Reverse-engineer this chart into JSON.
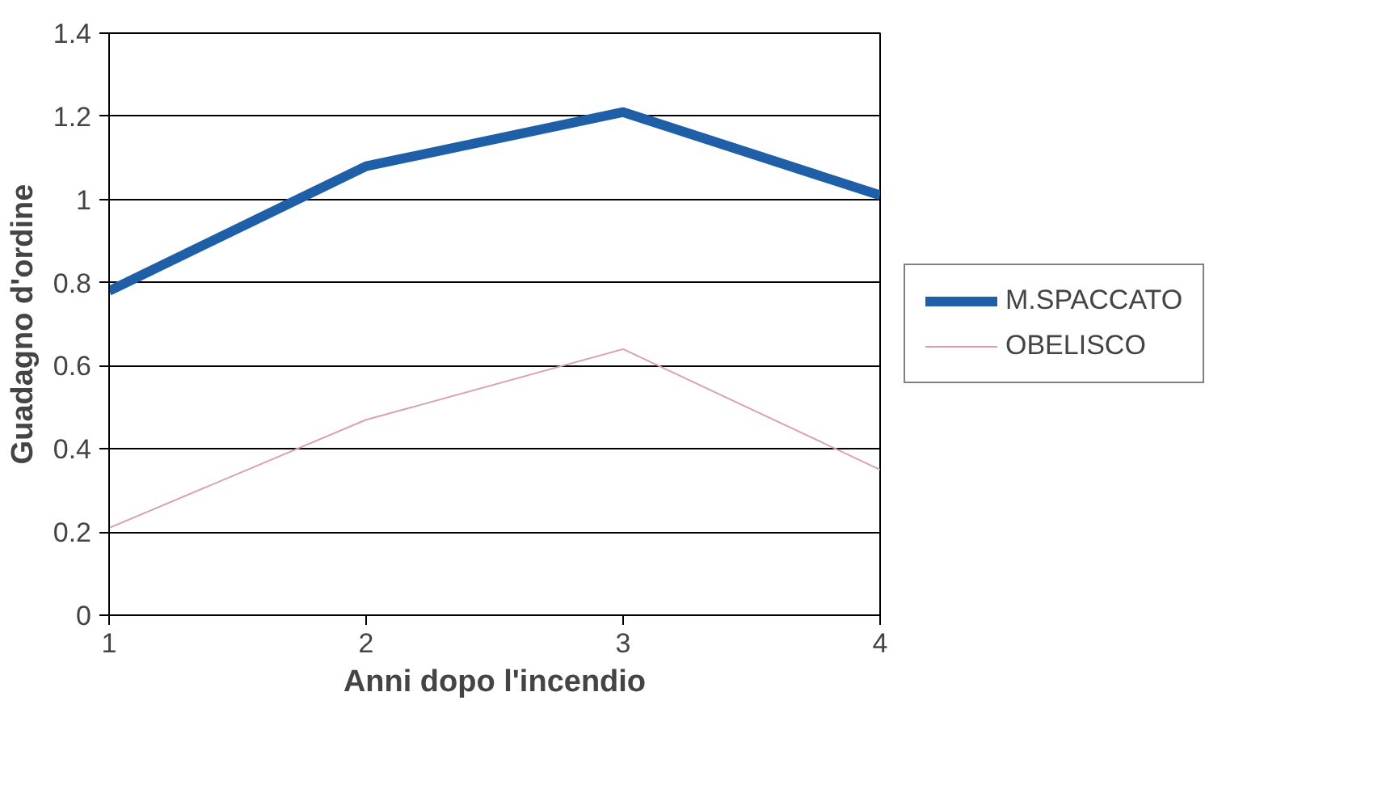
{
  "chart_data": {
    "type": "line",
    "xlabel": "Anni dopo l'incendio",
    "ylabel": "Guadagno d'ordine",
    "x": [
      1,
      2,
      3,
      4
    ],
    "series": [
      {
        "name": "M.SPACCATO",
        "color": "#1f5fa8",
        "values": [
          0.78,
          1.08,
          1.21,
          1.01
        ]
      },
      {
        "name": "OBELISCO",
        "color": "#d9a3ad",
        "values": [
          0.21,
          0.47,
          0.64,
          0.35
        ]
      }
    ],
    "xlim": [
      1,
      4
    ],
    "xticks": [
      1,
      2,
      3,
      4
    ],
    "ylim": [
      0,
      1.4
    ],
    "yticks": [
      0,
      0.2,
      0.4,
      0.6,
      0.8,
      1,
      1.2,
      1.4
    ],
    "grid": "y",
    "legend": "right",
    "marker": "none",
    "line_style": "solid"
  }
}
